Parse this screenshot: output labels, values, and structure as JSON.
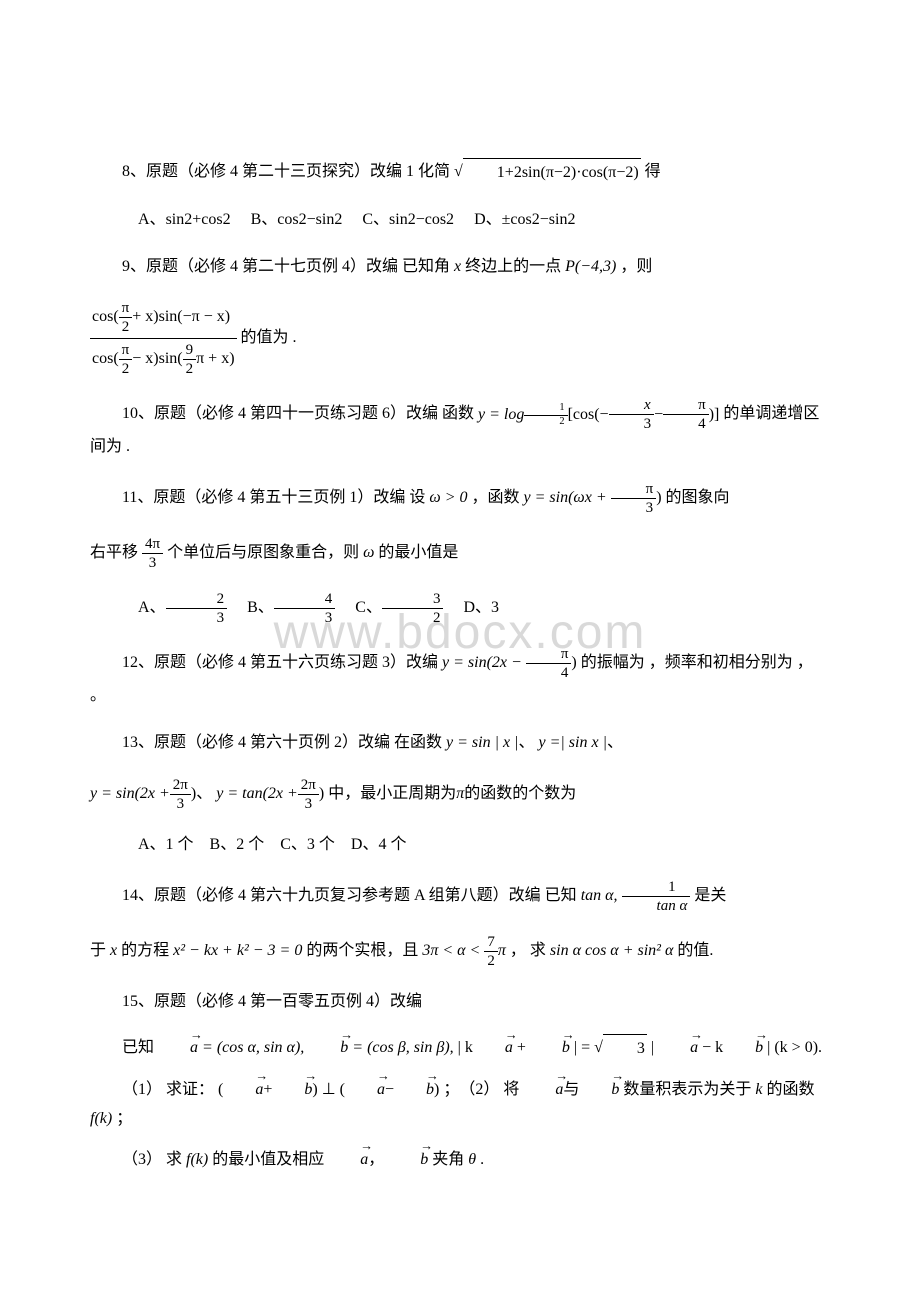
{
  "watermark": "www.bdocx.com",
  "q8": {
    "stem_pre": "8、原题（必修 4 第二十三页探究）改编 1 化简",
    "expr_under_sqrt": "1+2sin(π−2)·cos(π−2)",
    "stem_post": "得",
    "optA_label": "A、",
    "optA": "sin2+cos2",
    "optB_label": "B、",
    "optB": "cos2−sin2",
    "optC_label": "C、",
    "optC": "sin2−cos2",
    "optD_label": "D、",
    "optD": "±cos2−sin2"
  },
  "q9": {
    "stem_pre": "9、原题（必修 4 第二十七页例 4）改编 已知角",
    "x": "x",
    "stem_mid": "终边上的一点",
    "point": "P(−4,3)",
    "stem_post": "，则",
    "num_l": "cos(",
    "num_frac_num": "π",
    "num_frac_den": "2",
    "num_mid": "+ x)sin(−π − x)",
    "den_l": "cos(",
    "den_frac1_num": "π",
    "den_frac1_den": "2",
    "den_mid": "− x)sin(",
    "den_frac2_num": "9",
    "den_frac2_den": "2",
    "den_r": "π + x)",
    "tail": "的值为 ."
  },
  "q10": {
    "stem_pre": "10、原题（必修 4 第四十一页练习题 6）改编 函数",
    "y_eq": "y = log",
    "base_num": "1",
    "base_den": "2",
    "lb": "[cos(−",
    "f1n": "x",
    "f1d": "3",
    "minus": "−",
    "f2n": "π",
    "f2d": "4",
    "rb": ")]",
    "tail": "的单调递增区间为 ."
  },
  "q11": {
    "stem_pre": "11、原题（必修 4 第五十三页例 1）改编 设",
    "cond": "ω > 0",
    "comma": "，函数",
    "y_eq": "y = sin(ωx +",
    "fn": "π",
    "fd": "3",
    "rb": ")",
    "tail1": "的图象向",
    "line2_pre": "右平移",
    "shift_n": "4π",
    "shift_d": "3",
    "line2_post": "个单位后与原图象重合，则",
    "omega": "ω",
    "line2_tail": "的最小值是",
    "optA_label": "A、",
    "an": "2",
    "ad": "3",
    "optB_label": "B、",
    "bn": "4",
    "bd": "3",
    "optC_label": "C、",
    "cn": "3",
    "cd": "2",
    "optD_label": "D、",
    "dv": "3"
  },
  "q12": {
    "stem_pre": "12、原题（必修 4 第五十六页练习题 3）改编",
    "y_eq": "y = sin(2x −",
    "fn": "π",
    "fd": "4",
    "rb": ")",
    "tail": "的振幅为 ，频率和初相分别为 ， 。"
  },
  "q13": {
    "stem_pre": "13、原题（必修 4 第六十页例 2）改编 在函数",
    "f1": "y = sin | x |",
    "sep1": "、",
    "f2": "y =| sin x |",
    "sep2": "、",
    "f3l": "y = sin(2x +",
    "f3n": "2π",
    "f3d": "3",
    "f3r": ")",
    "sep3": "、",
    "f4l": "y = tan(2x +",
    "f4n": "2π",
    "f4d": "3",
    "f4r": ")",
    "tail_mid": "中，最小正周期为",
    "pi": "π",
    "tail_end": "的函数的个数为",
    "opts": "A、1 个　B、2 个　C、3 个　D、4 个"
  },
  "q14": {
    "stem_pre": "14、原题（必修 4 第六十九页复习参考题 A 组第八题）改编 已知",
    "t1": "tan α,",
    "fn": "1",
    "fd": "tan α",
    "line1_tail": "是关",
    "line2_pre": "于",
    "x": "x",
    "line2_mid": "的方程",
    "eq": "x² − kx + k² − 3 = 0",
    "line2_mid2": "的两个实根，且",
    "cond_l": "3π < α <",
    "cn": "7",
    "cd": "2",
    "cond_r": "π",
    "line2_mid3": "， 求",
    "target": "sin α cos α + sin² α",
    "line2_tail": "的值."
  },
  "q15": {
    "title": "15、原题（必修 4 第一百零五页例 4）改编",
    "pre": "已知",
    "a_def": " = (cos α, sin α),",
    "b_def": " = (cos β, sin β),",
    "mod_l": "| k",
    "plus": " + ",
    "mod_m": " | = ",
    "sqrt3": "3",
    "mod_r": " | ",
    "minus": " − k",
    "mod_end": " | (k > 0)",
    "dot": ".",
    "p1_l": "（1） 求证：",
    "p1_r": "；　（2） 将",
    "with": "与",
    "p2_tail": "数量积表示为关于",
    "kvar": "k",
    "p2_end": "的函数",
    "fk": "f(k)",
    "semicolon": "；",
    "p3_l": "（3） 求",
    "fk2": "f(k)",
    "p3_mid": "的最小值及相应",
    "comma": "，",
    "p3_mid2": "夹角",
    "theta": "θ",
    "p3_end": "."
  }
}
